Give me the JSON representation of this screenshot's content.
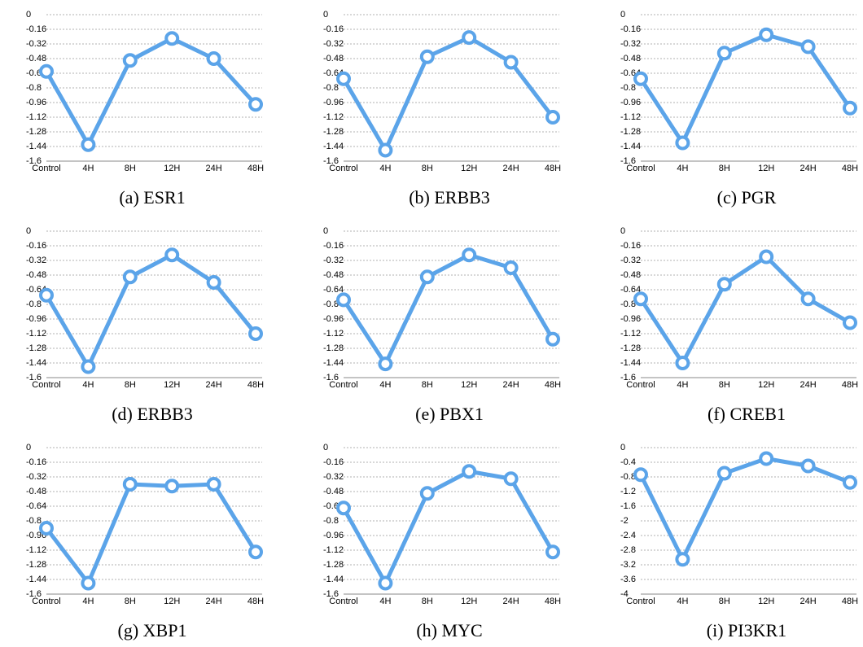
{
  "chart_data": [
    {
      "type": "line",
      "title": "(a) ESR1",
      "categories": [
        "Control",
        "4H",
        "8H",
        "12H",
        "24H",
        "48H"
      ],
      "values": [
        -0.62,
        -1.42,
        -0.5,
        -0.26,
        -0.48,
        -0.98
      ],
      "color": "#5ba4e9",
      "ylim": [
        -1.6,
        0
      ],
      "yticks": [
        0,
        -0.16,
        -0.32,
        -0.48,
        -0.64,
        -0.8,
        -0.96,
        -1.12,
        -1.28,
        -1.44,
        -1.6
      ],
      "grid": true
    },
    {
      "type": "line",
      "title": "(b) ERBB3",
      "categories": [
        "Control",
        "4H",
        "8H",
        "12H",
        "24H",
        "48H"
      ],
      "values": [
        -0.7,
        -1.48,
        -0.46,
        -0.25,
        -0.52,
        -1.12
      ],
      "color": "#5ba4e9",
      "ylim": [
        -1.6,
        0
      ],
      "yticks": [
        0,
        -0.16,
        -0.32,
        -0.48,
        -0.64,
        -0.8,
        -0.96,
        -1.12,
        -1.28,
        -1.44,
        -1.6
      ],
      "grid": true
    },
    {
      "type": "line",
      "title": "(c) PGR",
      "categories": [
        "Control",
        "4H",
        "8H",
        "12H",
        "24H",
        "48H"
      ],
      "values": [
        -0.7,
        -1.4,
        -0.42,
        -0.22,
        -0.35,
        -1.02
      ],
      "color": "#5ba4e9",
      "ylim": [
        -1.6,
        0
      ],
      "yticks": [
        0,
        -0.16,
        -0.32,
        -0.48,
        -0.64,
        -0.8,
        -0.96,
        -1.12,
        -1.28,
        -1.44,
        -1.6
      ],
      "grid": true
    },
    {
      "type": "line",
      "title": "(d) ERBB3",
      "categories": [
        "Control",
        "4H",
        "8H",
        "12H",
        "24H",
        "48H"
      ],
      "values": [
        -0.7,
        -1.48,
        -0.5,
        -0.26,
        -0.56,
        -1.12
      ],
      "color": "#5ba4e9",
      "ylim": [
        -1.6,
        0
      ],
      "yticks": [
        0,
        -0.16,
        -0.32,
        -0.48,
        -0.64,
        -0.8,
        -0.96,
        -1.12,
        -1.28,
        -1.44,
        -1.6
      ],
      "grid": true
    },
    {
      "type": "line",
      "title": "(e) PBX1",
      "categories": [
        "Control",
        "4H",
        "8H",
        "12H",
        "24H",
        "48H"
      ],
      "values": [
        -0.75,
        -1.45,
        -0.5,
        -0.26,
        -0.4,
        -1.18
      ],
      "color": "#5ba4e9",
      "ylim": [
        -1.6,
        0
      ],
      "yticks": [
        0,
        -0.16,
        -0.32,
        -0.48,
        -0.64,
        -0.8,
        -0.96,
        -1.12,
        -1.28,
        -1.44,
        -1.6
      ],
      "grid": true
    },
    {
      "type": "line",
      "title": "(f) CREB1",
      "categories": [
        "Control",
        "4H",
        "8H",
        "12H",
        "24H",
        "48H"
      ],
      "values": [
        -0.74,
        -1.44,
        -0.58,
        -0.28,
        -0.74,
        -1.0
      ],
      "color": "#5ba4e9",
      "ylim": [
        -1.6,
        0
      ],
      "yticks": [
        0,
        -0.16,
        -0.32,
        -0.48,
        -0.64,
        -0.8,
        -0.96,
        -1.12,
        -1.28,
        -1.44,
        -1.6
      ],
      "grid": true
    },
    {
      "type": "line",
      "title": "(g) XBP1",
      "categories": [
        "Control",
        "4H",
        "8H",
        "12H",
        "24H",
        "48H"
      ],
      "values": [
        -0.88,
        -1.48,
        -0.4,
        -0.42,
        -0.4,
        -1.14
      ],
      "color": "#5ba4e9",
      "ylim": [
        -1.6,
        0
      ],
      "yticks": [
        0,
        -0.16,
        -0.32,
        -0.48,
        -0.64,
        -0.8,
        -0.96,
        -1.12,
        -1.28,
        -1.44,
        -1.6
      ],
      "grid": true
    },
    {
      "type": "line",
      "title": "(h) MYC",
      "categories": [
        "Control",
        "4H",
        "8H",
        "12H",
        "24H",
        "48H"
      ],
      "values": [
        -0.66,
        -1.48,
        -0.5,
        -0.26,
        -0.34,
        -1.14
      ],
      "color": "#5ba4e9",
      "ylim": [
        -1.6,
        0
      ],
      "yticks": [
        0,
        -0.16,
        -0.32,
        -0.48,
        -0.64,
        -0.8,
        -0.96,
        -1.12,
        -1.28,
        -1.44,
        -1.6
      ],
      "grid": true
    },
    {
      "type": "line",
      "title": "(i) PI3KR1",
      "categories": [
        "Control",
        "4H",
        "8H",
        "12H",
        "24H",
        "48H"
      ],
      "values": [
        -0.74,
        -3.05,
        -0.7,
        -0.3,
        -0.5,
        -0.95
      ],
      "color": "#5ba4e9",
      "ylim": [
        -4,
        0
      ],
      "yticks": [
        0,
        -0.4,
        -0.8,
        -1.2,
        -1.6,
        -2,
        -2.4,
        -2.8,
        -3.2,
        -3.6,
        -4
      ],
      "grid": true
    }
  ]
}
